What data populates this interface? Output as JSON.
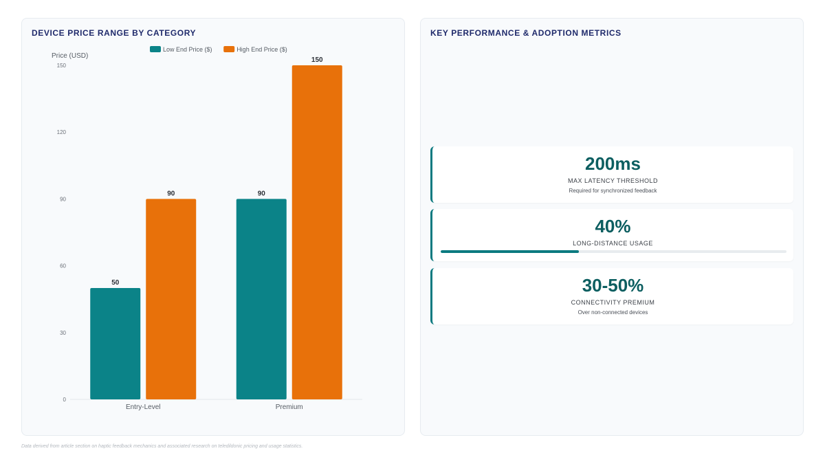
{
  "chart_panel": {
    "title": "DEVICE PRICE RANGE BY CATEGORY"
  },
  "chart_data": {
    "type": "bar",
    "categories": [
      "Entry-Level",
      "Premium"
    ],
    "series": [
      {
        "name": "Low End Price ($)",
        "values": [
          50,
          90
        ],
        "color": "#0b8388"
      },
      {
        "name": "High End Price ($)",
        "values": [
          90,
          150
        ],
        "color": "#e8710a"
      }
    ],
    "xlabel": "",
    "ylabel": "Price (USD)",
    "ylim": [
      0,
      150
    ],
    "yticks": [
      0,
      30,
      60,
      90,
      120,
      150
    ],
    "legend": "top-center",
    "data_labels": true,
    "grid": false
  },
  "metrics_panel": {
    "title": "KEY PERFORMANCE & ADOPTION METRICS",
    "cards": [
      {
        "value": "200ms",
        "label": "MAX LATENCY THRESHOLD",
        "sub": "Required for synchronized feedback"
      },
      {
        "value": "40%",
        "label": "LONG-DISTANCE USAGE",
        "progress": 0.4
      },
      {
        "value": "30-50%",
        "label": "CONNECTIVITY PREMIUM",
        "sub": "Over non-connected devices"
      }
    ]
  },
  "footnote": "Data derived from article section on haptic feedback mechanics and associated research on teledildonic pricing and usage statistics."
}
